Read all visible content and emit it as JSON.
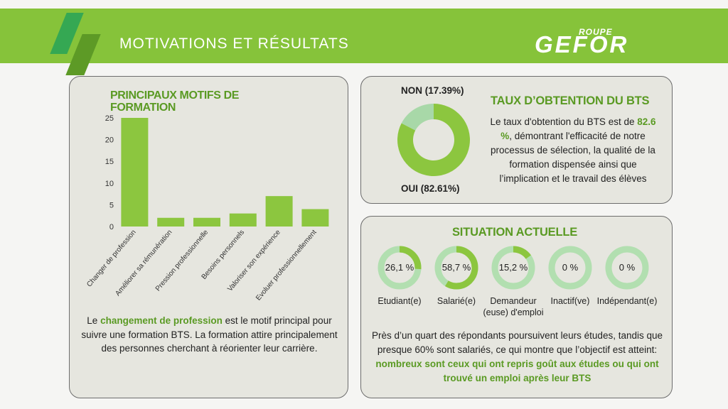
{
  "header": {
    "title": "MOTIVATIONS ET RÉSULTATS",
    "logo_top": "ROUPE",
    "logo_main": "GEFOR"
  },
  "colors": {
    "accent": "#86c33a",
    "bar": "#8cc63f",
    "dark_green": "#5a9a23",
    "ring_track": "#b2dfb0"
  },
  "motifs": {
    "title": "PRINCIPAUX MOTIFS DE FORMATION",
    "desc_pre": "Le ",
    "desc_highlight": "changement de profession",
    "desc_post": " est le motif principal pour suivre une formation BTS. La formation attire principalement des personnes cherchant à réorienter leur carrière."
  },
  "chart_data": [
    {
      "type": "bar",
      "title": "PRINCIPAUX MOTIFS DE FORMATION",
      "categories": [
        "Changer de profession",
        "Améliorer sa rémunération",
        "Pression professionnelle",
        "Besoins personnels",
        "Valoriser son expérience",
        "Evoluer professionnellement"
      ],
      "values": [
        25,
        2,
        2,
        3,
        7,
        4
      ],
      "ylim": [
        0,
        25
      ],
      "yticks": [
        "0",
        "5",
        "10",
        "15",
        "20",
        "25"
      ],
      "grid": false
    },
    {
      "type": "pie",
      "title": "TAUX D'OBTENTION DU BTS",
      "labels": [
        "OUI (82.61%)",
        "NON (17.39%)"
      ],
      "values": [
        82.61,
        17.39
      ]
    }
  ],
  "bts": {
    "title": "TAUX D’OBTENTION DU BTS",
    "non_label": "NON (17.39%)",
    "oui_label": "OUI (82.61%)",
    "desc_pre": "Le taux d'obtention du BTS est de ",
    "desc_highlight": "82.6 %",
    "desc_post": ", démontrant l'efficacité de notre processus de sélection, la qualité de la formation dispensée ainsi que l’implication et le travail des élèves"
  },
  "situation": {
    "title": "SITUATION ACTUELLE",
    "items": [
      {
        "value": 26.1,
        "text": "26,1 %",
        "label": "Etudiant(e)"
      },
      {
        "value": 58.7,
        "text": "58,7 %",
        "label": "Salarié(e)"
      },
      {
        "value": 15.2,
        "text": "15,2 %",
        "label": "Demandeur (euse) d'emploi"
      },
      {
        "value": 0,
        "text": "0 %",
        "label": "Inactif(ve)"
      },
      {
        "value": 0,
        "text": "0 %",
        "label": "Indépendant(e)"
      }
    ],
    "desc_pre": "Près d’un quart des répondants poursuivent leurs études, tandis que presque 60% sont salariés, ce qui montre que l’objectif est atteint: ",
    "desc_highlight": "nombreux sont ceux qui ont repris goût aux études ou qui ont trouvé un emploi après leur BTS"
  }
}
